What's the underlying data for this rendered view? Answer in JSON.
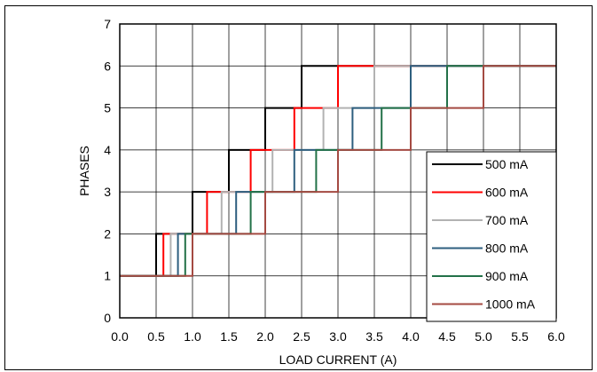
{
  "chart_data": {
    "type": "line",
    "xlabel": "LOAD CURRENT (A)",
    "ylabel": "PHASES",
    "xlim": [
      0,
      6
    ],
    "ylim": [
      0,
      7
    ],
    "x_ticks": [
      "0.0",
      "0.5",
      "1.0",
      "1.5",
      "2.0",
      "2.5",
      "3.0",
      "3.5",
      "4.0",
      "4.5",
      "5.0",
      "5.5",
      "6.0"
    ],
    "y_ticks": [
      "0",
      "1",
      "2",
      "3",
      "4",
      "5",
      "6",
      "7"
    ],
    "grid": true,
    "legend_position": "bottom-right",
    "series": [
      {
        "name": "500 mA",
        "color": "#000000",
        "thresholds": [
          0.5,
          1.0,
          1.5,
          2.0,
          2.5
        ]
      },
      {
        "name": "600 mA",
        "color": "#ff0000",
        "thresholds": [
          0.6,
          1.2,
          1.8,
          2.4,
          3.0
        ]
      },
      {
        "name": "700 mA",
        "color": "#b2b2b2",
        "thresholds": [
          0.7,
          1.4,
          2.1,
          2.8,
          3.5
        ]
      },
      {
        "name": "800 mA",
        "color": "#2e5f7f",
        "thresholds": [
          0.8,
          1.6,
          2.4,
          3.2,
          4.0
        ]
      },
      {
        "name": "900 mA",
        "color": "#237148",
        "thresholds": [
          0.9,
          1.8,
          2.7,
          3.6,
          4.5
        ]
      },
      {
        "name": "1000 mA",
        "color": "#a44a42",
        "thresholds": [
          1.0,
          2.0,
          3.0,
          4.0,
          5.0
        ]
      }
    ]
  }
}
